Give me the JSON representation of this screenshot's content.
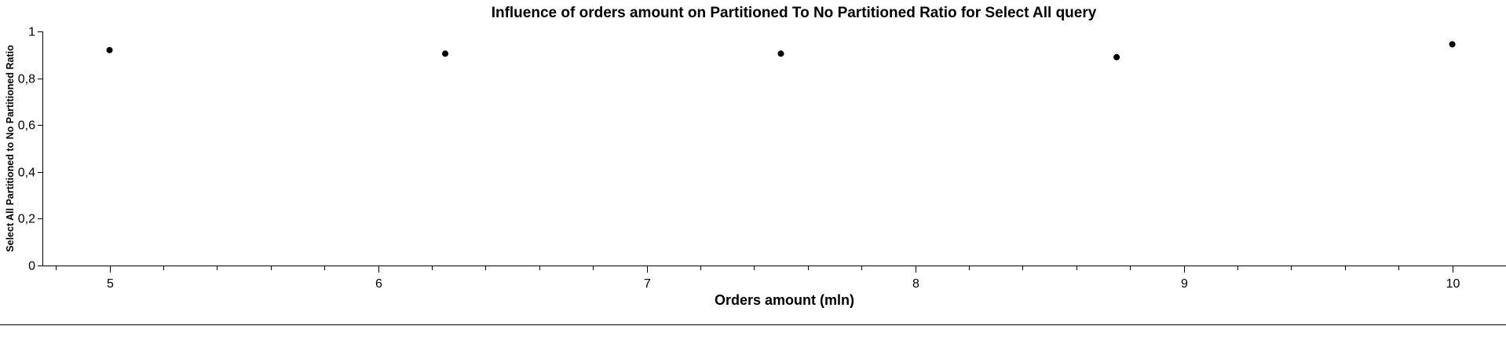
{
  "chart_data": {
    "type": "scatter",
    "title": "Influence of orders amount on Partitioned To No Partitioned Ratio for Select All query",
    "xlabel": "Orders amount (mln)",
    "ylabel": "Select All Partitioned to No Partitioned Ratio",
    "x": [
      5,
      6.25,
      7.5,
      8.75,
      10
    ],
    "y": [
      0.92,
      0.905,
      0.905,
      0.89,
      0.945
    ],
    "xlim": [
      4.75,
      10.2
    ],
    "ylim": [
      0,
      1
    ],
    "x_ticks": [
      5,
      6,
      7,
      8,
      9,
      10
    ],
    "x_tick_labels": [
      "5",
      "6",
      "7",
      "8",
      "9",
      "10"
    ],
    "x_minor_step": 0.2,
    "y_ticks": [
      0,
      0.2,
      0.4,
      0.6,
      0.8,
      1
    ],
    "y_tick_labels": [
      "0",
      "0,2",
      "0,4",
      "0,6",
      "0,8",
      "1"
    ],
    "grid": false,
    "legend": "none",
    "marker_color": "#000000"
  }
}
